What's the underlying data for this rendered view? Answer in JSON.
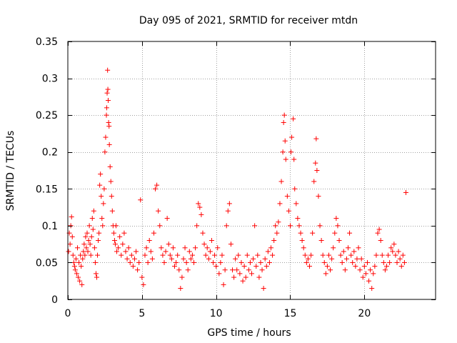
{
  "chart_data": {
    "type": "scatter",
    "title": "Day 095 of 2021, SRMTID for receiver mtdn",
    "xlabel": "GPS time / hours",
    "ylabel": "SRMTID / TECUs",
    "xlim": [
      0,
      24.8
    ],
    "ylim": [
      0,
      0.35
    ],
    "grid": true,
    "marker": "plus",
    "color": "#ff0000",
    "x_ticks": [
      0,
      5,
      10,
      15,
      20
    ],
    "x_tick_labels": [
      "0",
      "5",
      "10",
      "15",
      "20"
    ],
    "y_ticks": [
      0,
      0.05,
      0.1,
      0.15,
      0.2,
      0.25,
      0.3,
      0.35
    ],
    "y_tick_labels": [
      "0",
      "0.05",
      "0.1",
      "0.15",
      "0.2",
      "0.25",
      "0.3",
      "0.35"
    ],
    "series": [
      {
        "name": "SRMTID",
        "points": [
          [
            0.05,
            0.065
          ],
          [
            0.1,
            0.09
          ],
          [
            0.15,
            0.075
          ],
          [
            0.2,
            0.1
          ],
          [
            0.25,
            0.112
          ],
          [
            0.3,
            0.085
          ],
          [
            0.35,
            0.06
          ],
          [
            0.4,
            0.05
          ],
          [
            0.45,
            0.045
          ],
          [
            0.5,
            0.04
          ],
          [
            0.55,
            0.055
          ],
          [
            0.6,
            0.035
          ],
          [
            0.65,
            0.07
          ],
          [
            0.7,
            0.03
          ],
          [
            0.75,
            0.05
          ],
          [
            0.8,
            0.025
          ],
          [
            0.85,
            0.06
          ],
          [
            0.9,
            0.045
          ],
          [
            0.95,
            0.02
          ],
          [
            1.0,
            0.055
          ],
          [
            1.05,
            0.065
          ],
          [
            1.1,
            0.075
          ],
          [
            1.15,
            0.06
          ],
          [
            1.2,
            0.085
          ],
          [
            1.25,
            0.07
          ],
          [
            1.3,
            0.09
          ],
          [
            1.35,
            0.065
          ],
          [
            1.4,
            0.08
          ],
          [
            1.45,
            0.1
          ],
          [
            1.5,
            0.075
          ],
          [
            1.55,
            0.06
          ],
          [
            1.6,
            0.085
          ],
          [
            1.65,
            0.11
          ],
          [
            1.7,
            0.095
          ],
          [
            1.75,
            0.12
          ],
          [
            1.8,
            0.07
          ],
          [
            1.85,
            0.05
          ],
          [
            1.9,
            0.035
          ],
          [
            1.95,
            0.03
          ],
          [
            2.0,
            0.06
          ],
          [
            2.05,
            0.08
          ],
          [
            2.1,
            0.09
          ],
          [
            2.15,
            0.155
          ],
          [
            2.2,
            0.17
          ],
          [
            2.25,
            0.14
          ],
          [
            2.3,
            0.11
          ],
          [
            2.35,
            0.1
          ],
          [
            2.4,
            0.13
          ],
          [
            2.45,
            0.15
          ],
          [
            2.5,
            0.2
          ],
          [
            2.55,
            0.22
          ],
          [
            2.6,
            0.25
          ],
          [
            2.62,
            0.26
          ],
          [
            2.65,
            0.28
          ],
          [
            2.68,
            0.311
          ],
          [
            2.7,
            0.285
          ],
          [
            2.72,
            0.27
          ],
          [
            2.75,
            0.24
          ],
          [
            2.78,
            0.235
          ],
          [
            2.8,
            0.21
          ],
          [
            2.85,
            0.18
          ],
          [
            2.9,
            0.16
          ],
          [
            2.95,
            0.14
          ],
          [
            3.0,
            0.12
          ],
          [
            3.05,
            0.1
          ],
          [
            3.1,
            0.09
          ],
          [
            3.15,
            0.08
          ],
          [
            3.2,
            0.075
          ],
          [
            3.25,
            0.1
          ],
          [
            3.3,
            0.065
          ],
          [
            3.4,
            0.07
          ],
          [
            3.5,
            0.085
          ],
          [
            3.6,
            0.06
          ],
          [
            3.7,
            0.075
          ],
          [
            3.8,
            0.09
          ],
          [
            3.9,
            0.065
          ],
          [
            4.0,
            0.055
          ],
          [
            4.1,
            0.07
          ],
          [
            4.2,
            0.05
          ],
          [
            4.3,
            0.06
          ],
          [
            4.4,
            0.045
          ],
          [
            4.5,
            0.055
          ],
          [
            4.6,
            0.065
          ],
          [
            4.7,
            0.04
          ],
          [
            4.8,
            0.05
          ],
          [
            4.9,
            0.135
          ],
          [
            5.0,
            0.03
          ],
          [
            5.1,
            0.02
          ],
          [
            5.2,
            0.06
          ],
          [
            5.3,
            0.07
          ],
          [
            5.4,
            0.05
          ],
          [
            5.5,
            0.08
          ],
          [
            5.6,
            0.065
          ],
          [
            5.7,
            0.055
          ],
          [
            5.8,
            0.09
          ],
          [
            5.9,
            0.15
          ],
          [
            6.0,
            0.155
          ],
          [
            6.1,
            0.12
          ],
          [
            6.2,
            0.1
          ],
          [
            6.3,
            0.07
          ],
          [
            6.4,
            0.06
          ],
          [
            6.5,
            0.05
          ],
          [
            6.6,
            0.065
          ],
          [
            6.7,
            0.11
          ],
          [
            6.8,
            0.075
          ],
          [
            6.9,
            0.06
          ],
          [
            7.0,
            0.055
          ],
          [
            7.1,
            0.07
          ],
          [
            7.2,
            0.045
          ],
          [
            7.3,
            0.05
          ],
          [
            7.4,
            0.06
          ],
          [
            7.5,
            0.04
          ],
          [
            7.6,
            0.015
          ],
          [
            7.7,
            0.03
          ],
          [
            7.8,
            0.055
          ],
          [
            7.9,
            0.07
          ],
          [
            8.0,
            0.05
          ],
          [
            8.1,
            0.04
          ],
          [
            8.2,
            0.065
          ],
          [
            8.3,
            0.055
          ],
          [
            8.4,
            0.06
          ],
          [
            8.5,
            0.05
          ],
          [
            8.6,
            0.07
          ],
          [
            8.7,
            0.1
          ],
          [
            8.8,
            0.13
          ],
          [
            8.9,
            0.125
          ],
          [
            9.0,
            0.115
          ],
          [
            9.1,
            0.09
          ],
          [
            9.2,
            0.075
          ],
          [
            9.3,
            0.06
          ],
          [
            9.4,
            0.07
          ],
          [
            9.5,
            0.055
          ],
          [
            9.6,
            0.065
          ],
          [
            9.7,
            0.08
          ],
          [
            9.8,
            0.05
          ],
          [
            9.9,
            0.06
          ],
          [
            10.0,
            0.045
          ],
          [
            10.1,
            0.07
          ],
          [
            10.2,
            0.035
          ],
          [
            10.3,
            0.05
          ],
          [
            10.4,
            0.06
          ],
          [
            10.5,
            0.02
          ],
          [
            10.6,
            0.04
          ],
          [
            10.7,
            0.1
          ],
          [
            10.8,
            0.12
          ],
          [
            10.9,
            0.13
          ],
          [
            11.0,
            0.075
          ],
          [
            11.1,
            0.04
          ],
          [
            11.2,
            0.03
          ],
          [
            11.3,
            0.055
          ],
          [
            11.4,
            0.04
          ],
          [
            11.5,
            0.06
          ],
          [
            11.6,
            0.035
          ],
          [
            11.7,
            0.05
          ],
          [
            11.8,
            0.025
          ],
          [
            11.9,
            0.045
          ],
          [
            12.0,
            0.03
          ],
          [
            12.1,
            0.06
          ],
          [
            12.2,
            0.04
          ],
          [
            12.3,
            0.05
          ],
          [
            12.4,
            0.035
          ],
          [
            12.5,
            0.055
          ],
          [
            12.6,
            0.1
          ],
          [
            12.7,
            0.045
          ],
          [
            12.8,
            0.06
          ],
          [
            12.9,
            0.03
          ],
          [
            13.0,
            0.05
          ],
          [
            13.1,
            0.04
          ],
          [
            13.2,
            0.015
          ],
          [
            13.3,
            0.055
          ],
          [
            13.4,
            0.045
          ],
          [
            13.5,
            0.065
          ],
          [
            13.6,
            0.05
          ],
          [
            13.7,
            0.07
          ],
          [
            13.8,
            0.06
          ],
          [
            13.9,
            0.08
          ],
          [
            14.0,
            0.1
          ],
          [
            14.1,
            0.09
          ],
          [
            14.2,
            0.105
          ],
          [
            14.3,
            0.13
          ],
          [
            14.4,
            0.16
          ],
          [
            14.5,
            0.2
          ],
          [
            14.55,
            0.24
          ],
          [
            14.6,
            0.25
          ],
          [
            14.65,
            0.215
          ],
          [
            14.7,
            0.19
          ],
          [
            14.8,
            0.14
          ],
          [
            14.9,
            0.12
          ],
          [
            15.0,
            0.1
          ],
          [
            15.05,
            0.2
          ],
          [
            15.1,
            0.22
          ],
          [
            15.2,
            0.245
          ],
          [
            15.25,
            0.19
          ],
          [
            15.3,
            0.15
          ],
          [
            15.4,
            0.13
          ],
          [
            15.5,
            0.11
          ],
          [
            15.6,
            0.1
          ],
          [
            15.7,
            0.09
          ],
          [
            15.8,
            0.08
          ],
          [
            15.9,
            0.07
          ],
          [
            16.0,
            0.06
          ],
          [
            16.1,
            0.05
          ],
          [
            16.2,
            0.055
          ],
          [
            16.3,
            0.045
          ],
          [
            16.4,
            0.06
          ],
          [
            16.5,
            0.09
          ],
          [
            16.6,
            0.16
          ],
          [
            16.7,
            0.185
          ],
          [
            16.75,
            0.218
          ],
          [
            16.8,
            0.175
          ],
          [
            16.9,
            0.14
          ],
          [
            17.0,
            0.1
          ],
          [
            17.1,
            0.08
          ],
          [
            17.2,
            0.06
          ],
          [
            17.3,
            0.05
          ],
          [
            17.4,
            0.035
          ],
          [
            17.5,
            0.045
          ],
          [
            17.6,
            0.06
          ],
          [
            17.7,
            0.04
          ],
          [
            17.8,
            0.055
          ],
          [
            17.9,
            0.07
          ],
          [
            18.0,
            0.09
          ],
          [
            18.1,
            0.11
          ],
          [
            18.2,
            0.1
          ],
          [
            18.3,
            0.08
          ],
          [
            18.4,
            0.06
          ],
          [
            18.5,
            0.05
          ],
          [
            18.6,
            0.065
          ],
          [
            18.7,
            0.04
          ],
          [
            18.8,
            0.055
          ],
          [
            18.9,
            0.07
          ],
          [
            19.0,
            0.09
          ],
          [
            19.1,
            0.06
          ],
          [
            19.2,
            0.05
          ],
          [
            19.3,
            0.065
          ],
          [
            19.4,
            0.045
          ],
          [
            19.5,
            0.055
          ],
          [
            19.6,
            0.07
          ],
          [
            19.7,
            0.04
          ],
          [
            19.8,
            0.055
          ],
          [
            19.9,
            0.03
          ],
          [
            20.0,
            0.045
          ],
          [
            20.1,
            0.035
          ],
          [
            20.2,
            0.05
          ],
          [
            20.3,
            0.025
          ],
          [
            20.4,
            0.04
          ],
          [
            20.5,
            0.015
          ],
          [
            20.6,
            0.035
          ],
          [
            20.7,
            0.045
          ],
          [
            20.8,
            0.06
          ],
          [
            20.9,
            0.09
          ],
          [
            21.0,
            0.095
          ],
          [
            21.1,
            0.08
          ],
          [
            21.2,
            0.06
          ],
          [
            21.3,
            0.05
          ],
          [
            21.4,
            0.04
          ],
          [
            21.5,
            0.045
          ],
          [
            21.6,
            0.06
          ],
          [
            21.7,
            0.05
          ],
          [
            21.8,
            0.07
          ],
          [
            21.9,
            0.065
          ],
          [
            22.0,
            0.075
          ],
          [
            22.1,
            0.06
          ],
          [
            22.2,
            0.05
          ],
          [
            22.3,
            0.065
          ],
          [
            22.4,
            0.055
          ],
          [
            22.5,
            0.045
          ],
          [
            22.6,
            0.06
          ],
          [
            22.7,
            0.05
          ],
          [
            22.8,
            0.145
          ]
        ]
      }
    ]
  }
}
